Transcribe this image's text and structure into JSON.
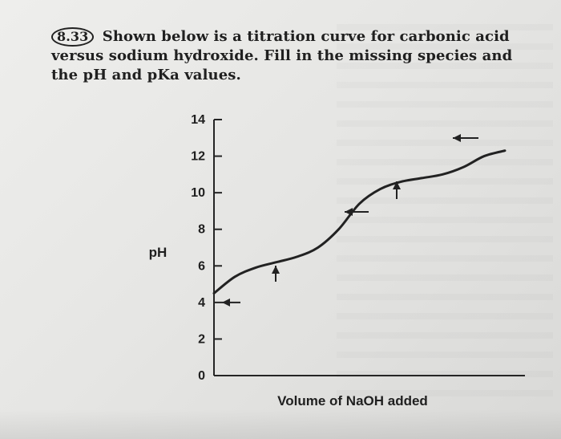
{
  "question": {
    "number": "8.33",
    "text_line_1": "Shown below is a titration curve for carbonic acid",
    "text_line_2": "versus sodium hydroxide. Fill in the missing species and",
    "text_line_3": "the pH and pKa values."
  },
  "chart_data": {
    "type": "line",
    "title": "",
    "xlabel": "Volume of NaOH added",
    "ylabel": "pH",
    "ylim": [
      0,
      14
    ],
    "yticks": [
      0,
      2,
      4,
      6,
      8,
      10,
      12,
      14
    ],
    "ytick_labels": [
      "0",
      "2",
      "4",
      "6",
      "8",
      "10",
      "12",
      "14"
    ],
    "grid": false,
    "series": [
      {
        "x": [
          0,
          0.5,
          1,
          1.5,
          2,
          2.5,
          3,
          3.5,
          4,
          4.5,
          5,
          5.5,
          6,
          6.5,
          7
        ],
        "y": [
          4.5,
          5.4,
          5.9,
          6.2,
          6.5,
          7.0,
          8.0,
          9.4,
          10.2,
          10.6,
          10.8,
          11.0,
          11.4,
          12.0,
          12.3
        ]
      }
    ],
    "annotations": [
      {
        "kind": "arrow",
        "direction": "left",
        "position_label": "at pH 4"
      },
      {
        "kind": "arrow",
        "direction": "up",
        "position_label": "below first buffer region"
      },
      {
        "kind": "arrow",
        "direction": "left",
        "position_label": "at equivalence point"
      },
      {
        "kind": "arrow",
        "direction": "up",
        "position_label": "below second buffer region"
      },
      {
        "kind": "arrow",
        "direction": "left",
        "position_label": "at top of curve"
      }
    ]
  }
}
